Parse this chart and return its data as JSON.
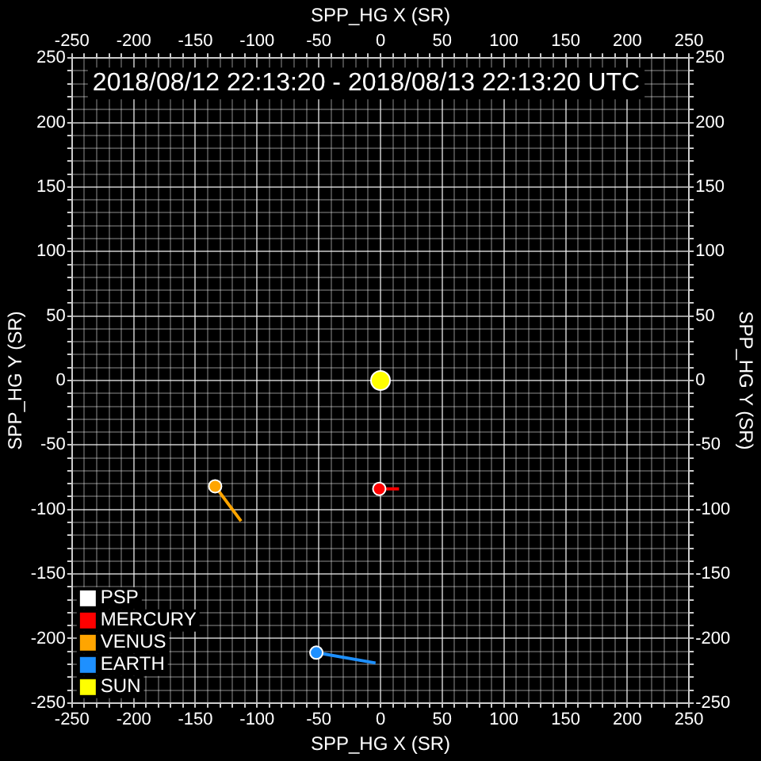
{
  "chart_data": {
    "type": "line",
    "title": "2018/08/12 22:13:20 - 2018/08/13 22:13:20 UTC",
    "xlabel": "SPP_HG X (SR)",
    "ylabel": "SPP_HG Y (SR)",
    "x2label": "SPP_HG X (SR)",
    "y2label": "SPP_HG Y (SR)",
    "xlim": [
      -250,
      250
    ],
    "ylim": [
      -250,
      250
    ],
    "x2lim": [
      -250,
      250
    ],
    "y2lim": [
      -250,
      250
    ],
    "xticks": [
      -250,
      {
        "value": -240,
        "label": null
      },
      {
        "value": -230,
        "label": null
      },
      {
        "value": -220,
        "label": null
      },
      {
        "value": -210,
        "label": null
      },
      -200,
      {
        "value": -190,
        "label": null
      },
      {
        "value": -180,
        "label": null
      },
      {
        "value": -170,
        "label": null
      },
      {
        "value": -160,
        "label": null
      },
      -150,
      {
        "value": -140,
        "label": null
      },
      {
        "value": -130,
        "label": null
      },
      {
        "value": -120,
        "label": null
      },
      {
        "value": -110,
        "label": null
      },
      -100,
      {
        "value": -90,
        "label": null
      },
      {
        "value": -80,
        "label": null
      },
      {
        "value": -70,
        "label": null
      },
      {
        "value": -60,
        "label": null
      },
      -50,
      {
        "value": -40,
        "label": null
      },
      {
        "value": -30,
        "label": null
      },
      {
        "value": -20,
        "label": null
      },
      {
        "value": -10,
        "label": null
      },
      0,
      {
        "value": 10,
        "label": null
      },
      {
        "value": 20,
        "label": null
      },
      {
        "value": 30,
        "label": null
      },
      {
        "value": 40,
        "label": null
      },
      50,
      {
        "value": 60,
        "label": null
      },
      {
        "value": 70,
        "label": null
      },
      {
        "value": 80,
        "label": null
      },
      {
        "value": 90,
        "label": null
      },
      100,
      {
        "value": 110,
        "label": null
      },
      {
        "value": 120,
        "label": null
      },
      {
        "value": 130,
        "label": null
      },
      {
        "value": 140,
        "label": null
      },
      150,
      {
        "value": 160,
        "label": null
      },
      {
        "value": 170,
        "label": null
      },
      {
        "value": 180,
        "label": null
      },
      {
        "value": 190,
        "label": null
      },
      200,
      {
        "value": 210,
        "label": null
      },
      {
        "value": 220,
        "label": null
      },
      {
        "value": 230,
        "label": null
      },
      {
        "value": 240,
        "label": null
      },
      250
    ],
    "yticks": [
      -250,
      {
        "value": -240,
        "label": null
      },
      {
        "value": -230,
        "label": null
      },
      {
        "value": -220,
        "label": null
      },
      {
        "value": -210,
        "label": null
      },
      -200,
      {
        "value": -190,
        "label": null
      },
      {
        "value": -180,
        "label": null
      },
      {
        "value": -170,
        "label": null
      },
      {
        "value": -160,
        "label": null
      },
      -150,
      {
        "value": -140,
        "label": null
      },
      {
        "value": -130,
        "label": null
      },
      {
        "value": -120,
        "label": null
      },
      {
        "value": -110,
        "label": null
      },
      -100,
      {
        "value": -90,
        "label": null
      },
      {
        "value": -80,
        "label": null
      },
      {
        "value": -70,
        "label": null
      },
      {
        "value": -60,
        "label": null
      },
      -50,
      {
        "value": -40,
        "label": null
      },
      {
        "value": -30,
        "label": null
      },
      {
        "value": -20,
        "label": null
      },
      {
        "value": -10,
        "label": null
      },
      0,
      {
        "value": 10,
        "label": null
      },
      {
        "value": 20,
        "label": null
      },
      {
        "value": 30,
        "label": null
      },
      {
        "value": 40,
        "label": null
      },
      50,
      {
        "value": 60,
        "label": null
      },
      {
        "value": 70,
        "label": null
      },
      {
        "value": 80,
        "label": null
      },
      {
        "value": 90,
        "label": null
      },
      100,
      {
        "value": 110,
        "label": null
      },
      {
        "value": 120,
        "label": null
      },
      {
        "value": 130,
        "label": null
      },
      {
        "value": 140,
        "label": null
      },
      150,
      {
        "value": 160,
        "label": null
      },
      {
        "value": 170,
        "label": null
      },
      {
        "value": 180,
        "label": null
      },
      {
        "value": 190,
        "label": null
      },
      200,
      {
        "value": 210,
        "label": null
      },
      {
        "value": 220,
        "label": null
      },
      {
        "value": 230,
        "label": null
      },
      {
        "value": 240,
        "label": null
      },
      250
    ],
    "x2ticks": [
      -250,
      {
        "value": -240,
        "label": null
      },
      {
        "value": -230,
        "label": null
      },
      {
        "value": -220,
        "label": null
      },
      {
        "value": -210,
        "label": null
      },
      -200,
      {
        "value": -190,
        "label": null
      },
      {
        "value": -180,
        "label": null
      },
      {
        "value": -170,
        "label": null
      },
      {
        "value": -160,
        "label": null
      },
      -150,
      {
        "value": -140,
        "label": null
      },
      {
        "value": -130,
        "label": null
      },
      {
        "value": -120,
        "label": null
      },
      {
        "value": -110,
        "label": null
      },
      -100,
      {
        "value": -90,
        "label": null
      },
      {
        "value": -80,
        "label": null
      },
      {
        "value": -70,
        "label": null
      },
      {
        "value": -60,
        "label": null
      },
      -50,
      {
        "value": -40,
        "label": null
      },
      {
        "value": -30,
        "label": null
      },
      {
        "value": -20,
        "label": null
      },
      {
        "value": -10,
        "label": null
      },
      0,
      {
        "value": 10,
        "label": null
      },
      {
        "value": 20,
        "label": null
      },
      {
        "value": 30,
        "label": null
      },
      {
        "value": 40,
        "label": null
      },
      50,
      {
        "value": 60,
        "label": null
      },
      {
        "value": 70,
        "label": null
      },
      {
        "value": 80,
        "label": null
      },
      {
        "value": 90,
        "label": null
      },
      100,
      {
        "value": 110,
        "label": null
      },
      {
        "value": 120,
        "label": null
      },
      {
        "value": 130,
        "label": null
      },
      {
        "value": 140,
        "label": null
      },
      150,
      {
        "value": 160,
        "label": null
      },
      {
        "value": 170,
        "label": null
      },
      {
        "value": 180,
        "label": null
      },
      {
        "value": 190,
        "label": null
      },
      200,
      {
        "value": 210,
        "label": null
      },
      {
        "value": 220,
        "label": null
      },
      {
        "value": 230,
        "label": null
      },
      {
        "value": 240,
        "label": null
      },
      250
    ],
    "y2ticks": [
      -250,
      {
        "value": -240,
        "label": null
      },
      {
        "value": -230,
        "label": null
      },
      {
        "value": -220,
        "label": null
      },
      {
        "value": -210,
        "label": null
      },
      -200,
      {
        "value": -190,
        "label": null
      },
      {
        "value": -180,
        "label": null
      },
      {
        "value": -170,
        "label": null
      },
      {
        "value": -160,
        "label": null
      },
      -150,
      {
        "value": -140,
        "label": null
      },
      {
        "value": -130,
        "label": null
      },
      {
        "value": -120,
        "label": null
      },
      {
        "value": -110,
        "label": null
      },
      -100,
      {
        "value": -90,
        "label": null
      },
      {
        "value": -80,
        "label": null
      },
      {
        "value": -70,
        "label": null
      },
      {
        "value": -60,
        "label": null
      },
      -50,
      {
        "value": -40,
        "label": null
      },
      {
        "value": -30,
        "label": null
      },
      {
        "value": -20,
        "label": null
      },
      {
        "value": -10,
        "label": null
      },
      0,
      {
        "value": 10,
        "label": null
      },
      {
        "value": 20,
        "label": null
      },
      {
        "value": 30,
        "label": null
      },
      {
        "value": 40,
        "label": null
      },
      50,
      {
        "value": 60,
        "label": null
      },
      {
        "value": 70,
        "label": null
      },
      {
        "value": 80,
        "label": null
      },
      {
        "value": 90,
        "label": null
      },
      100,
      {
        "value": 110,
        "label": null
      },
      {
        "value": 120,
        "label": null
      },
      {
        "value": 130,
        "label": null
      },
      {
        "value": 140,
        "label": null
      },
      150,
      {
        "value": 160,
        "label": null
      },
      {
        "value": 170,
        "label": null
      },
      {
        "value": 180,
        "label": null
      },
      {
        "value": 190,
        "label": null
      },
      200,
      {
        "value": 210,
        "label": null
      },
      {
        "value": 220,
        "label": null
      },
      {
        "value": 230,
        "label": null
      },
      {
        "value": 240,
        "label": null
      },
      250
    ],
    "grid": true,
    "legend": "bottom left",
    "marker": "circle",
    "series": [
      {
        "name": "PSP",
        "color": "#ffffff"
      },
      {
        "name": "MERCURY",
        "color": "#ff0000",
        "x": [
          -1,
          15
        ],
        "values": [
          -84,
          -84
        ]
      },
      {
        "name": "VENUS",
        "color": "#ffa500",
        "x": [
          -134,
          -113
        ],
        "values": [
          -82,
          -109
        ]
      },
      {
        "name": "EARTH",
        "color": "#1e90ff",
        "x": [
          -52,
          -4
        ],
        "values": [
          -211,
          -219
        ]
      },
      {
        "name": "SUN",
        "color": "#ffff00",
        "x": [
          0
        ],
        "values": [
          0
        ]
      }
    ]
  }
}
